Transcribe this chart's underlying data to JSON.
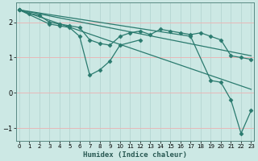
{
  "xlabel": "Humidex (Indice chaleur)",
  "bg_color": "#cce8e4",
  "grid_color_h": "#e8b8b8",
  "grid_color_v": "#b8d8d4",
  "line_color": "#2a7a6e",
  "xlim": [
    -0.3,
    23.3
  ],
  "ylim": [
    -1.35,
    2.55
  ],
  "xticks": [
    0,
    1,
    2,
    3,
    4,
    5,
    6,
    7,
    8,
    9,
    10,
    11,
    12,
    13,
    14,
    15,
    16,
    17,
    18,
    19,
    20,
    21,
    22,
    23
  ],
  "yticks": [
    -1,
    0,
    1,
    2
  ],
  "line_jagged": {
    "x": [
      0,
      1,
      2,
      3,
      4,
      5,
      6,
      7,
      8,
      9,
      10,
      11,
      12,
      13,
      14,
      15,
      16,
      17,
      18,
      19,
      20,
      21,
      22,
      23
    ],
    "y": [
      2.35,
      2.25,
      2.2,
      2.0,
      1.95,
      1.9,
      1.85,
      1.5,
      1.4,
      1.35,
      1.6,
      1.7,
      1.75,
      1.65,
      1.8,
      1.75,
      1.7,
      1.65,
      1.7,
      1.6,
      1.5,
      1.05,
      1.0,
      0.95
    ]
  },
  "line_upper_straight": {
    "x": [
      0,
      23
    ],
    "y": [
      2.35,
      1.05
    ]
  },
  "line_dip": {
    "x": [
      0,
      3,
      4,
      5,
      6,
      7,
      8,
      9,
      10,
      12
    ],
    "y": [
      2.35,
      1.95,
      1.9,
      1.85,
      1.6,
      0.5,
      0.65,
      0.9,
      1.35,
      1.5
    ]
  },
  "line_middle_straight": {
    "x": [
      0,
      23
    ],
    "y": [
      2.35,
      0.1
    ]
  },
  "line_steep": {
    "x": [
      0,
      17,
      19,
      20,
      21,
      22,
      23
    ],
    "y": [
      2.35,
      1.6,
      0.35,
      0.3,
      -0.2,
      -1.15,
      -0.5
    ]
  },
  "marker": "D",
  "marker_size": 2.5,
  "linewidth": 0.9
}
